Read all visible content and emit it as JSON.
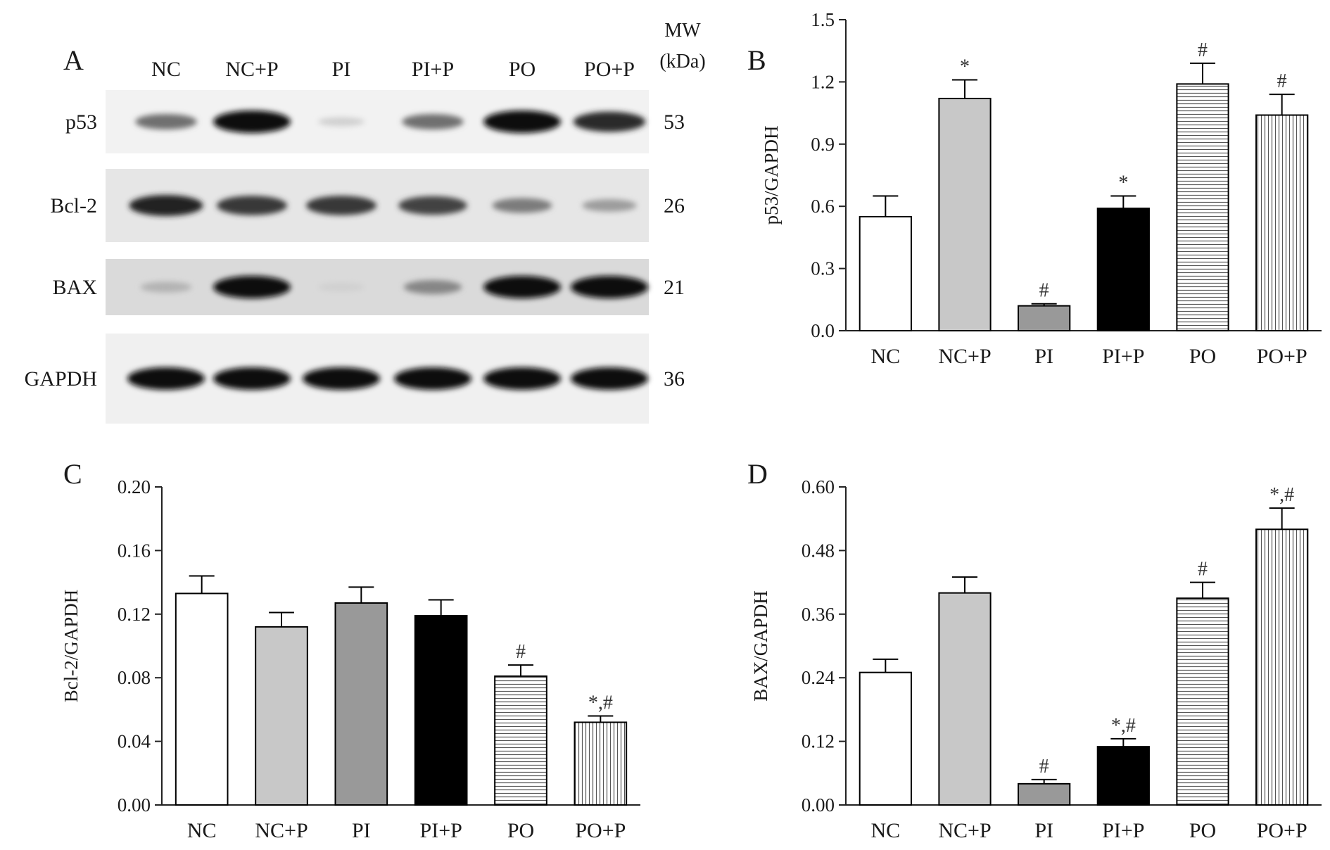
{
  "panels": {
    "A": "A",
    "B": "B",
    "C": "C",
    "D": "D"
  },
  "blot": {
    "lanes": [
      "NC",
      "NC+P",
      "PI",
      "PI+P",
      "PO",
      "PO+P"
    ],
    "mw_header_line1": "MW",
    "mw_header_line2": "(kDa)",
    "rows": [
      {
        "label": "p53",
        "mw": "53",
        "intensity": [
          0.55,
          1.0,
          0.12,
          0.55,
          1.0,
          0.85
        ]
      },
      {
        "label": "Bcl-2",
        "mw": "26",
        "intensity": [
          0.9,
          0.8,
          0.8,
          0.75,
          0.5,
          0.35
        ]
      },
      {
        "label": "BAX",
        "mw": "21",
        "intensity": [
          0.25,
          1.0,
          0.12,
          0.45,
          1.0,
          1.0
        ]
      },
      {
        "label": "GAPDH",
        "mw": "36",
        "intensity": [
          1.0,
          1.0,
          1.0,
          1.0,
          1.0,
          1.0
        ]
      }
    ]
  },
  "chart_data": [
    {
      "id": "B",
      "type": "bar",
      "categories": [
        "NC",
        "NC+P",
        "PI",
        "PI+P",
        "PO",
        "PO+P"
      ],
      "values": [
        0.55,
        1.12,
        0.12,
        0.59,
        1.19,
        1.04
      ],
      "errors": [
        0.1,
        0.09,
        0.01,
        0.06,
        0.1,
        0.1
      ],
      "annotations": [
        "",
        "*",
        "#",
        "*",
        "#",
        "#"
      ],
      "ylabel": "p53/GAPDH",
      "ylim": [
        0,
        1.5
      ],
      "yticks": [
        "0.0",
        "0.3",
        "0.6",
        "0.9",
        "1.2",
        "1.5"
      ],
      "tick_values": [
        0,
        0.3,
        0.6,
        0.9,
        1.2,
        1.5
      ]
    },
    {
      "id": "C",
      "type": "bar",
      "categories": [
        "NC",
        "NC+P",
        "PI",
        "PI+P",
        "PO",
        "PO+P"
      ],
      "values": [
        0.133,
        0.112,
        0.127,
        0.119,
        0.081,
        0.052
      ],
      "errors": [
        0.011,
        0.009,
        0.01,
        0.01,
        0.007,
        0.004
      ],
      "annotations": [
        "",
        "",
        "",
        "",
        "#",
        "*,#"
      ],
      "ylabel": "Bcl-2/GAPDH",
      "ylim": [
        0,
        0.2
      ],
      "yticks": [
        "0.00",
        "0.04",
        "0.08",
        "0.12",
        "0.16",
        "0.20"
      ],
      "tick_values": [
        0,
        0.04,
        0.08,
        0.12,
        0.16,
        0.2
      ]
    },
    {
      "id": "D",
      "type": "bar",
      "categories": [
        "NC",
        "NC+P",
        "PI",
        "PI+P",
        "PO",
        "PO+P"
      ],
      "values": [
        0.25,
        0.4,
        0.04,
        0.11,
        0.39,
        0.52
      ],
      "errors": [
        0.025,
        0.03,
        0.008,
        0.015,
        0.03,
        0.04
      ],
      "annotations": [
        "",
        "",
        "#",
        "*,#",
        "#",
        "*,#"
      ],
      "ylabel": "BAX/GAPDH",
      "ylim": [
        0,
        0.6
      ],
      "yticks": [
        "0.00",
        "0.12",
        "0.24",
        "0.36",
        "0.48",
        "0.60"
      ],
      "tick_values": [
        0,
        0.12,
        0.24,
        0.36,
        0.48,
        0.6
      ]
    }
  ],
  "style": {
    "bar_fills": [
      "white",
      "#c8c8c8",
      "#999999",
      "#000000",
      "hstripe",
      "vstripe"
    ],
    "axis_color": "#222222"
  }
}
